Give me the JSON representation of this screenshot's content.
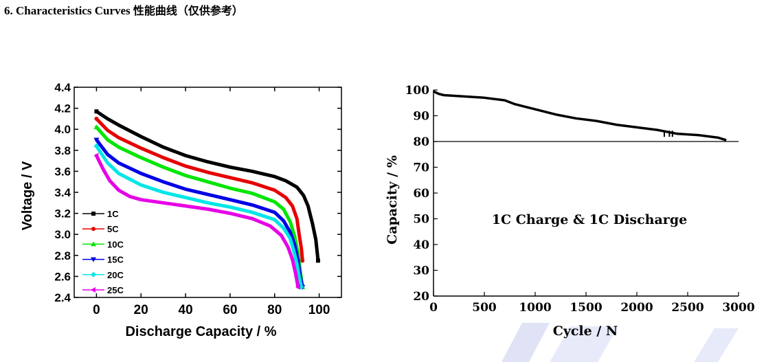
{
  "heading": {
    "number": "6.",
    "en": "Characteristics Curves",
    "zh": "性能曲线（仅供参考）"
  },
  "chart_data": [
    {
      "type": "line",
      "title": "",
      "xlabel": "Discharge Capacity / %",
      "ylabel": "Voltage / V",
      "xlim": [
        -10,
        110
      ],
      "ylim": [
        2.4,
        4.4
      ],
      "xticks": [
        "0",
        "20",
        "40",
        "60",
        "80",
        "100"
      ],
      "yticks": [
        "2.4",
        "2.6",
        "2.8",
        "3.0",
        "3.2",
        "3.4",
        "3.6",
        "3.8",
        "4.0",
        "4.2",
        "4.4"
      ],
      "legend_position": "bottom-left",
      "series": [
        {
          "name": "1C",
          "color": "#000000",
          "marker": "square",
          "x": [
            0,
            5,
            10,
            20,
            30,
            40,
            50,
            60,
            70,
            80,
            85,
            90,
            93,
            95,
            97,
            98.5,
            99.5
          ],
          "y": [
            4.17,
            4.1,
            4.04,
            3.93,
            3.83,
            3.75,
            3.69,
            3.64,
            3.6,
            3.55,
            3.51,
            3.45,
            3.37,
            3.27,
            3.1,
            2.95,
            2.75
          ]
        },
        {
          "name": "5C",
          "color": "#e60000",
          "marker": "circle",
          "x": [
            0,
            5,
            10,
            20,
            30,
            40,
            50,
            60,
            70,
            80,
            85,
            88,
            90,
            91,
            92,
            92.5
          ],
          "y": [
            4.1,
            3.99,
            3.92,
            3.82,
            3.73,
            3.65,
            3.59,
            3.54,
            3.49,
            3.42,
            3.35,
            3.27,
            3.15,
            3.0,
            2.87,
            2.75
          ]
        },
        {
          "name": "10C",
          "color": "#00e600",
          "marker": "triangle-up",
          "x": [
            0,
            5,
            10,
            20,
            30,
            40,
            50,
            60,
            70,
            80,
            84,
            87,
            89,
            90.5,
            91.5,
            92.5
          ],
          "y": [
            4.02,
            3.9,
            3.83,
            3.73,
            3.64,
            3.56,
            3.5,
            3.44,
            3.39,
            3.31,
            3.24,
            3.12,
            2.98,
            2.82,
            2.65,
            2.5
          ]
        },
        {
          "name": "15C",
          "color": "#0000e6",
          "marker": "triangle-down",
          "x": [
            0,
            5,
            10,
            20,
            30,
            40,
            50,
            60,
            70,
            80,
            84,
            87,
            89,
            90.5,
            91.5,
            92.5
          ],
          "y": [
            3.9,
            3.76,
            3.68,
            3.58,
            3.5,
            3.43,
            3.38,
            3.33,
            3.28,
            3.21,
            3.13,
            3.02,
            2.9,
            2.75,
            2.6,
            2.5
          ]
        },
        {
          "name": "20C",
          "color": "#00e6e6",
          "marker": "diamond",
          "x": [
            0,
            5,
            10,
            20,
            30,
            40,
            50,
            60,
            70,
            80,
            84,
            87,
            88.5,
            90,
            91,
            92
          ],
          "y": [
            3.84,
            3.68,
            3.58,
            3.47,
            3.4,
            3.35,
            3.3,
            3.26,
            3.21,
            3.14,
            3.06,
            2.96,
            2.85,
            2.72,
            2.6,
            2.5
          ]
        },
        {
          "name": "25C",
          "color": "#e600e6",
          "marker": "left-triangle",
          "x": [
            0,
            3,
            6,
            10,
            15,
            20,
            30,
            40,
            50,
            60,
            70,
            78,
            83,
            86,
            88,
            89.5,
            90.5
          ],
          "y": [
            3.75,
            3.62,
            3.51,
            3.42,
            3.36,
            3.33,
            3.3,
            3.27,
            3.24,
            3.2,
            3.15,
            3.08,
            2.99,
            2.88,
            2.76,
            2.62,
            2.5
          ]
        }
      ]
    },
    {
      "type": "line",
      "title": "",
      "annotation": "1C Charge & 1C Discharge",
      "xlabel": "Cycle / N",
      "ylabel": "Capacity / %",
      "xlim": [
        0,
        3000
      ],
      "ylim": [
        20,
        100
      ],
      "xticks": [
        "0",
        "500",
        "1000",
        "1500",
        "2000",
        "2500",
        "3000"
      ],
      "yticks": [
        "20",
        "30",
        "40",
        "50",
        "60",
        "70",
        "80",
        "90",
        "100"
      ],
      "reference_line": 80,
      "series": [
        {
          "name": "Capacity",
          "color": "#000000",
          "x": [
            0,
            50,
            100,
            300,
            500,
            700,
            800,
            1000,
            1200,
            1400,
            1600,
            1800,
            2000,
            2200,
            2400,
            2600,
            2800,
            2880
          ],
          "y": [
            99.5,
            98.5,
            98,
            97.5,
            97,
            96,
            94.5,
            92.5,
            90.5,
            89,
            88,
            86.5,
            85.5,
            84.5,
            83,
            82.5,
            81.5,
            80.5
          ]
        }
      ]
    }
  ]
}
